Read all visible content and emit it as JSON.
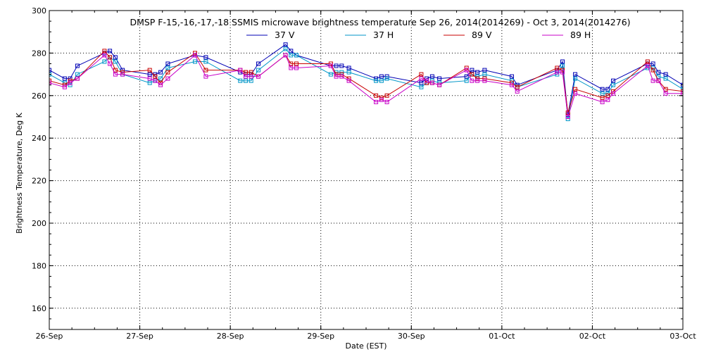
{
  "chart_data": {
    "type": "line",
    "title": "DMSP F-15,-16,-17,-18 SSMIS microwave brightness temperature Sep 26, 2014(2014269) - Oct  3, 2014(2014276)",
    "xlabel": "Date (EST)",
    "ylabel": "Brightness Temperature, Deg K",
    "xlim": [
      0,
      7
    ],
    "ylim": [
      150,
      300
    ],
    "yticks": [
      160,
      180,
      200,
      220,
      240,
      260,
      280,
      300
    ],
    "xticks": [
      {
        "pos": 0,
        "label": "26-Sep"
      },
      {
        "pos": 1,
        "label": "27-Sep"
      },
      {
        "pos": 2,
        "label": "28-Sep"
      },
      {
        "pos": 3,
        "label": "29-Sep"
      },
      {
        "pos": 4,
        "label": "30-Sep"
      },
      {
        "pos": 5,
        "label": "01-Oct"
      },
      {
        "pos": 6,
        "label": "02-Oct"
      },
      {
        "pos": 7,
        "label": "03-Oct"
      }
    ],
    "grid": true,
    "legend_position": "top-center",
    "series": [
      {
        "name": "37 V",
        "color": "#0000b4",
        "points": [
          [
            0.0,
            272
          ],
          [
            0.17,
            268
          ],
          [
            0.23,
            268
          ],
          [
            0.31,
            274
          ],
          [
            0.61,
            280
          ],
          [
            0.67,
            281
          ],
          [
            0.73,
            278
          ],
          [
            0.81,
            272
          ],
          [
            1.11,
            270
          ],
          [
            1.17,
            270
          ],
          [
            1.23,
            271
          ],
          [
            1.31,
            275
          ],
          [
            1.61,
            279
          ],
          [
            1.73,
            278
          ],
          [
            2.11,
            271
          ],
          [
            2.17,
            270
          ],
          [
            2.23,
            270
          ],
          [
            2.31,
            275
          ],
          [
            2.61,
            284
          ],
          [
            2.67,
            281
          ],
          [
            2.73,
            279
          ],
          [
            3.11,
            274
          ],
          [
            3.17,
            274
          ],
          [
            3.23,
            274
          ],
          [
            3.31,
            273
          ],
          [
            3.61,
            268
          ],
          [
            3.67,
            269
          ],
          [
            3.73,
            269
          ],
          [
            4.11,
            266
          ],
          [
            4.17,
            268
          ],
          [
            4.23,
            269
          ],
          [
            4.31,
            268
          ],
          [
            4.61,
            269
          ],
          [
            4.67,
            272
          ],
          [
            4.73,
            271
          ],
          [
            4.81,
            272
          ],
          [
            5.11,
            269
          ],
          [
            5.17,
            265
          ],
          [
            5.61,
            272
          ],
          [
            5.67,
            276
          ],
          [
            5.73,
            251
          ],
          [
            5.81,
            270
          ],
          [
            6.11,
            263
          ],
          [
            6.17,
            263
          ],
          [
            6.23,
            267
          ],
          [
            6.61,
            275
          ],
          [
            6.67,
            275
          ],
          [
            6.73,
            271
          ],
          [
            6.81,
            270
          ],
          [
            7.0,
            265
          ]
        ]
      },
      {
        "name": "37 H",
        "color": "#0096c8",
        "points": [
          [
            0.0,
            270
          ],
          [
            0.17,
            266
          ],
          [
            0.23,
            265
          ],
          [
            0.31,
            270
          ],
          [
            0.61,
            276
          ],
          [
            0.67,
            278
          ],
          [
            0.73,
            276
          ],
          [
            0.81,
            270
          ],
          [
            1.11,
            266
          ],
          [
            1.17,
            267
          ],
          [
            1.23,
            268
          ],
          [
            1.31,
            273
          ],
          [
            1.61,
            276
          ],
          [
            1.73,
            276
          ],
          [
            2.11,
            267
          ],
          [
            2.17,
            267
          ],
          [
            2.23,
            267
          ],
          [
            2.31,
            272
          ],
          [
            2.61,
            282
          ],
          [
            2.67,
            279
          ],
          [
            2.73,
            279
          ],
          [
            3.11,
            270
          ],
          [
            3.17,
            271
          ],
          [
            3.23,
            271
          ],
          [
            3.31,
            271
          ],
          [
            3.61,
            267
          ],
          [
            3.67,
            267
          ],
          [
            3.73,
            268
          ],
          [
            4.11,
            264
          ],
          [
            4.17,
            266
          ],
          [
            4.23,
            267
          ],
          [
            4.31,
            266
          ],
          [
            4.61,
            267
          ],
          [
            4.67,
            270
          ],
          [
            4.73,
            269
          ],
          [
            4.81,
            270
          ],
          [
            5.11,
            267
          ],
          [
            5.17,
            264
          ],
          [
            5.61,
            270
          ],
          [
            5.67,
            274
          ],
          [
            5.73,
            249
          ],
          [
            5.81,
            268
          ],
          [
            6.11,
            261
          ],
          [
            6.17,
            261
          ],
          [
            6.23,
            265
          ],
          [
            6.61,
            273
          ],
          [
            6.67,
            273
          ],
          [
            6.73,
            269
          ],
          [
            6.81,
            268
          ],
          [
            7.0,
            263
          ]
        ]
      },
      {
        "name": "89 V",
        "color": "#c80000",
        "points": [
          [
            0.0,
            267
          ],
          [
            0.17,
            265
          ],
          [
            0.23,
            267
          ],
          [
            0.31,
            268
          ],
          [
            0.61,
            281
          ],
          [
            0.67,
            278
          ],
          [
            0.73,
            272
          ],
          [
            0.81,
            271
          ],
          [
            1.11,
            272
          ],
          [
            1.17,
            269
          ],
          [
            1.23,
            266
          ],
          [
            1.31,
            271
          ],
          [
            1.61,
            280
          ],
          [
            1.73,
            272
          ],
          [
            2.11,
            272
          ],
          [
            2.17,
            271
          ],
          [
            2.23,
            271
          ],
          [
            2.31,
            269
          ],
          [
            2.61,
            279
          ],
          [
            2.67,
            275
          ],
          [
            2.73,
            275
          ],
          [
            3.11,
            275
          ],
          [
            3.17,
            270
          ],
          [
            3.23,
            270
          ],
          [
            3.31,
            268
          ],
          [
            3.61,
            260
          ],
          [
            3.67,
            259
          ],
          [
            3.73,
            260
          ],
          [
            4.11,
            270
          ],
          [
            4.17,
            266
          ],
          [
            4.23,
            266
          ],
          [
            4.31,
            265
          ],
          [
            4.61,
            273
          ],
          [
            4.67,
            270
          ],
          [
            4.73,
            268
          ],
          [
            4.81,
            268
          ],
          [
            5.11,
            266
          ],
          [
            5.17,
            264
          ],
          [
            5.61,
            273
          ],
          [
            5.67,
            272
          ],
          [
            5.73,
            252
          ],
          [
            5.81,
            263
          ],
          [
            6.11,
            259
          ],
          [
            6.17,
            260
          ],
          [
            6.23,
            262
          ],
          [
            6.61,
            276
          ],
          [
            6.67,
            272
          ],
          [
            6.73,
            267
          ],
          [
            6.81,
            263
          ],
          [
            7.0,
            262
          ]
        ]
      },
      {
        "name": "89 H",
        "color": "#c800c8",
        "points": [
          [
            0.0,
            266
          ],
          [
            0.17,
            264
          ],
          [
            0.23,
            266
          ],
          [
            0.31,
            268
          ],
          [
            0.61,
            279
          ],
          [
            0.67,
            275
          ],
          [
            0.73,
            270
          ],
          [
            0.81,
            270
          ],
          [
            1.11,
            268
          ],
          [
            1.17,
            267
          ],
          [
            1.23,
            265
          ],
          [
            1.31,
            268
          ],
          [
            1.61,
            279
          ],
          [
            1.73,
            269
          ],
          [
            2.11,
            272
          ],
          [
            2.17,
            269
          ],
          [
            2.23,
            269
          ],
          [
            2.31,
            269
          ],
          [
            2.61,
            279
          ],
          [
            2.67,
            273
          ],
          [
            2.73,
            273
          ],
          [
            3.11,
            274
          ],
          [
            3.17,
            269
          ],
          [
            3.23,
            269
          ],
          [
            3.31,
            267
          ],
          [
            3.61,
            257
          ],
          [
            3.67,
            258
          ],
          [
            3.73,
            257
          ],
          [
            4.11,
            268
          ],
          [
            4.17,
            267
          ],
          [
            4.23,
            266
          ],
          [
            4.31,
            265
          ],
          [
            4.61,
            272
          ],
          [
            4.67,
            267
          ],
          [
            4.73,
            267
          ],
          [
            4.81,
            267
          ],
          [
            5.11,
            265
          ],
          [
            5.17,
            262
          ],
          [
            5.61,
            271
          ],
          [
            5.67,
            271
          ],
          [
            5.73,
            250
          ],
          [
            5.81,
            261
          ],
          [
            6.11,
            257
          ],
          [
            6.17,
            258
          ],
          [
            6.23,
            261
          ],
          [
            6.61,
            274
          ],
          [
            6.67,
            267
          ],
          [
            6.73,
            267
          ],
          [
            6.81,
            261
          ],
          [
            7.0,
            261
          ]
        ]
      }
    ]
  }
}
